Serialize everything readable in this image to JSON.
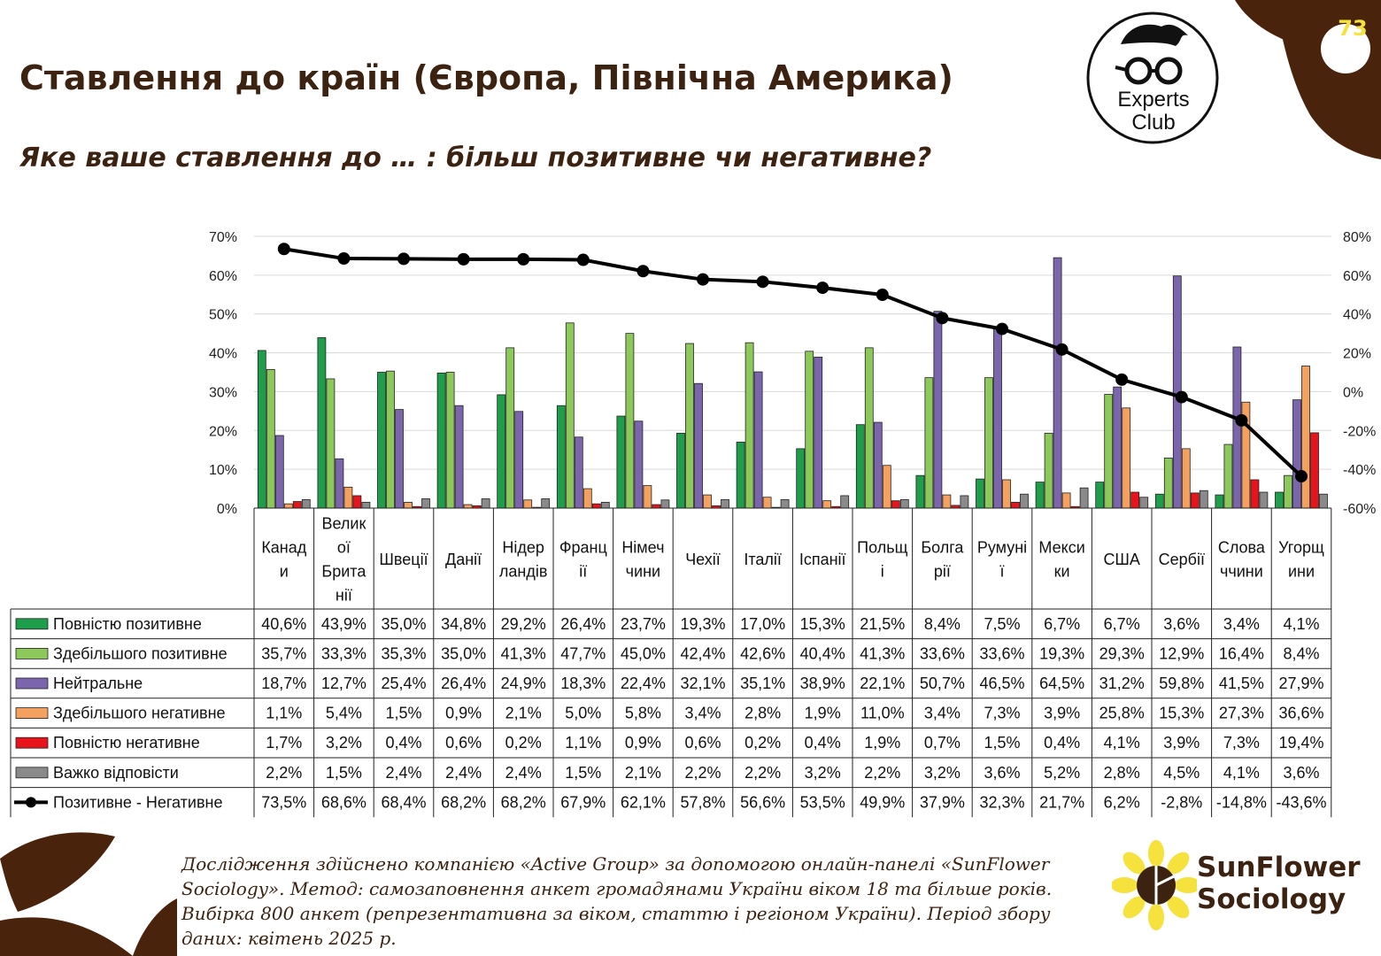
{
  "slide": {
    "title": "Ставлення до країн (Європа, Північна Америка)",
    "subtitle": "Яке ваше ставлення до … : більш позитивне чи негативне?",
    "page_number": "73",
    "logo_experts": [
      "Experts",
      "Club"
    ],
    "logo_sunflower": [
      "SunFlower",
      "Sociology"
    ],
    "footer_note": "Дослідження здійснено компанією «Active Group» за допомогою онлайн-панелі «SunFlower Sociology». Метод: самозаповнення анкет громадянами України віком 18 та більше років. Вибірка 800 анкет (репрезентативна за віком, статтю і регіоном України). Період збору даних: квітень 2025 р.",
    "colors": {
      "brown": "#3c2211",
      "yellow": "#f5e23c"
    }
  },
  "chart_data": {
    "type": "bar",
    "categories": [
      [
        "Канад",
        "и"
      ],
      [
        "Велик",
        "ої",
        "Брита",
        "нії"
      ],
      [
        "Швеції"
      ],
      [
        "Данії"
      ],
      [
        "Нідер",
        "ландів"
      ],
      [
        "Франц",
        "ії"
      ],
      [
        "Німеч",
        "чини"
      ],
      [
        "Чехії"
      ],
      [
        "Італії"
      ],
      [
        "Іспанії"
      ],
      [
        "Польщ",
        "і"
      ],
      [
        "Болга",
        "рії"
      ],
      [
        "Румуні",
        "ї"
      ],
      [
        "Мекси",
        "ки"
      ],
      [
        "США"
      ],
      [
        "Сербії"
      ],
      [
        "Слова",
        "ччини"
      ],
      [
        "Угорщ",
        "ини"
      ]
    ],
    "ylim": [
      0,
      70
    ],
    "yticks": [
      0,
      10,
      20,
      30,
      40,
      50,
      60,
      70
    ],
    "yticks_right": [
      -60,
      -40,
      -20,
      0,
      20,
      40,
      60,
      80
    ],
    "ylim_right": [
      -60,
      80
    ],
    "grid": true,
    "legend": "table-left",
    "series": [
      {
        "name": "Повністю позитивне",
        "type": "bar",
        "color": "#1e9e4a",
        "values": [
          40.6,
          43.9,
          35.0,
          34.8,
          29.2,
          26.4,
          23.7,
          19.3,
          17.0,
          15.3,
          21.5,
          8.4,
          7.5,
          6.7,
          6.7,
          3.6,
          3.4,
          4.1
        ],
        "labels": [
          "40,6%",
          "43,9%",
          "35,0%",
          "34,8%",
          "29,2%",
          "26,4%",
          "23,7%",
          "19,3%",
          "17,0%",
          "15,3%",
          "21,5%",
          "8,4%",
          "7,5%",
          "6,7%",
          "6,7%",
          "3,6%",
          "3,4%",
          "4,1%"
        ]
      },
      {
        "name": "Здебільшого позитивне",
        "type": "bar",
        "color": "#8cc85a",
        "values": [
          35.7,
          33.3,
          35.3,
          35.0,
          41.3,
          47.7,
          45.0,
          42.4,
          42.6,
          40.4,
          41.3,
          33.6,
          33.6,
          19.3,
          29.3,
          12.9,
          16.4,
          8.4
        ],
        "labels": [
          "35,7%",
          "33,3%",
          "35,3%",
          "35,0%",
          "41,3%",
          "47,7%",
          "45,0%",
          "42,4%",
          "42,6%",
          "40,4%",
          "41,3%",
          "33,6%",
          "33,6%",
          "19,3%",
          "29,3%",
          "12,9%",
          "16,4%",
          "8,4%"
        ]
      },
      {
        "name": "Нейтральне",
        "type": "bar",
        "color": "#7b66ad",
        "values": [
          18.7,
          12.7,
          25.4,
          26.4,
          24.9,
          18.3,
          22.4,
          32.1,
          35.1,
          38.9,
          22.1,
          50.7,
          46.5,
          64.5,
          31.2,
          59.8,
          41.5,
          27.9
        ],
        "labels": [
          "18,7%",
          "12,7%",
          "25,4%",
          "26,4%",
          "24,9%",
          "18,3%",
          "22,4%",
          "32,1%",
          "35,1%",
          "38,9%",
          "22,1%",
          "50,7%",
          "46,5%",
          "64,5%",
          "31,2%",
          "59,8%",
          "41,5%",
          "27,9%"
        ]
      },
      {
        "name": "Здебільшого негативне",
        "type": "bar",
        "color": "#f4a160",
        "values": [
          1.1,
          5.4,
          1.5,
          0.9,
          2.1,
          5.0,
          5.8,
          3.4,
          2.8,
          1.9,
          11.0,
          3.4,
          7.3,
          3.9,
          25.8,
          15.3,
          27.3,
          36.6
        ],
        "labels": [
          "1,1%",
          "5,4%",
          "1,5%",
          "0,9%",
          "2,1%",
          "5,0%",
          "5,8%",
          "3,4%",
          "2,8%",
          "1,9%",
          "11,0%",
          "3,4%",
          "7,3%",
          "3,9%",
          "25,8%",
          "15,3%",
          "27,3%",
          "36,6%"
        ]
      },
      {
        "name": "Повністю негативне",
        "type": "bar",
        "color": "#e8141c",
        "values": [
          1.7,
          3.2,
          0.4,
          0.6,
          0.2,
          1.1,
          0.9,
          0.6,
          0.2,
          0.4,
          1.9,
          0.7,
          1.5,
          0.4,
          4.1,
          3.9,
          7.3,
          19.4
        ],
        "labels": [
          "1,7%",
          "3,2%",
          "0,4%",
          "0,6%",
          "0,2%",
          "1,1%",
          "0,9%",
          "0,6%",
          "0,2%",
          "0,4%",
          "1,9%",
          "0,7%",
          "1,5%",
          "0,4%",
          "4,1%",
          "3,9%",
          "7,3%",
          "19,4%"
        ]
      },
      {
        "name": "Важко відповісти",
        "type": "bar",
        "color": "#8a8a8a",
        "values": [
          2.2,
          1.5,
          2.4,
          2.4,
          2.4,
          1.5,
          2.1,
          2.2,
          2.2,
          3.2,
          2.2,
          3.2,
          3.6,
          5.2,
          2.8,
          4.5,
          4.1,
          3.6
        ],
        "labels": [
          "2,2%",
          "1,5%",
          "2,4%",
          "2,4%",
          "2,4%",
          "1,5%",
          "2,1%",
          "2,2%",
          "2,2%",
          "3,2%",
          "2,2%",
          "3,2%",
          "3,6%",
          "5,2%",
          "2,8%",
          "4,5%",
          "4,1%",
          "3,6%"
        ]
      },
      {
        "name": "Позитивне - Негативне",
        "type": "line",
        "axis": "right",
        "color": "#000000",
        "values": [
          73.5,
          68.6,
          68.4,
          68.2,
          68.2,
          67.9,
          62.1,
          57.8,
          56.6,
          53.5,
          49.9,
          37.9,
          32.3,
          21.7,
          6.2,
          -2.8,
          -14.8,
          -43.6
        ],
        "labels": [
          "73,5%",
          "68,6%",
          "68,4%",
          "68,2%",
          "68,2%",
          "67,9%",
          "62,1%",
          "57,8%",
          "56,6%",
          "53,5%",
          "49,9%",
          "37,9%",
          "32,3%",
          "21,7%",
          "6,2%",
          "-2,8%",
          "-14,8%",
          "-43,6%"
        ]
      }
    ]
  }
}
